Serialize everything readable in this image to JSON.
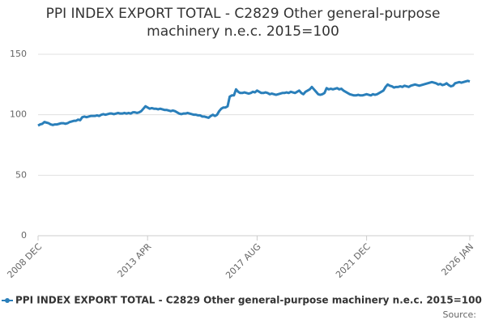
{
  "chart_data": {
    "type": "line",
    "title": "PPI INDEX EXPORT TOTAL - C2829 Other general-purpose machinery n.e.c. 2015=100",
    "source": "Source:",
    "categories": [
      "2008 DEC",
      null,
      null,
      null,
      null,
      null,
      null,
      null,
      null,
      null,
      null,
      null,
      null,
      null,
      null,
      null,
      null,
      null,
      null,
      null,
      null,
      null,
      null,
      null,
      null,
      null,
      null,
      null,
      null,
      null,
      null,
      null,
      null,
      null,
      null,
      null,
      null,
      null,
      null,
      null,
      null,
      null,
      null,
      null,
      null,
      null,
      null,
      null,
      null,
      null,
      null,
      null,
      "2013 APR",
      null,
      null,
      null,
      null,
      null,
      null,
      null,
      null,
      null,
      null,
      null,
      null,
      null,
      null,
      null,
      null,
      null,
      null,
      null,
      null,
      null,
      null,
      null,
      null,
      null,
      null,
      null,
      null,
      null,
      null,
      null,
      null,
      null,
      null,
      null,
      null,
      null,
      null,
      null,
      null,
      null,
      null,
      null,
      null,
      null,
      null,
      null,
      null,
      null,
      null,
      null,
      "2017 AUG",
      null,
      null,
      null,
      null,
      null,
      null,
      null,
      null,
      null,
      null,
      null,
      null,
      null,
      null,
      null,
      null,
      null,
      null,
      null,
      null,
      null,
      null,
      null,
      null,
      null,
      null,
      null,
      null,
      null,
      null,
      null,
      null,
      null,
      null,
      null,
      null,
      null,
      null,
      null,
      null,
      null,
      null,
      null,
      null,
      null,
      null,
      null,
      null,
      null,
      null,
      null,
      "2021 DEC",
      null,
      null,
      null,
      null,
      null,
      null,
      null,
      null,
      null,
      null,
      null,
      null,
      null,
      null,
      null,
      null,
      null,
      null,
      null,
      null,
      null,
      null,
      null,
      null,
      null,
      null,
      null,
      null,
      null,
      null,
      null,
      null,
      null,
      null,
      null,
      null,
      null,
      null,
      null,
      null,
      null,
      null,
      null,
      null,
      null,
      null,
      null,
      null,
      "2026 JAN"
    ],
    "series": [
      {
        "name": "PPI INDEX EXPORT TOTAL - C2829 Other general-purpose machinery n.e.c. 2015=100",
        "color": "#2a7fba",
        "values": [
          91,
          92,
          92.5,
          94,
          93.5,
          93,
          92,
          91.5,
          92,
          92,
          92.5,
          93,
          93,
          92.5,
          93,
          94,
          94.5,
          95,
          95,
          96,
          95.5,
          98,
          98.5,
          98,
          98.5,
          99,
          99,
          99,
          99.5,
          99,
          100,
          100.5,
          100,
          100.5,
          101,
          101,
          100.5,
          101,
          101.5,
          101,
          101,
          101.5,
          101,
          101.5,
          101,
          102,
          102,
          101.5,
          102,
          103,
          105,
          107,
          106,
          105,
          105.5,
          105,
          105,
          104.5,
          105,
          104.5,
          104,
          104,
          103.5,
          103,
          103.5,
          103,
          102,
          101,
          100.5,
          101,
          101,
          101.5,
          101,
          100.5,
          100,
          100,
          99.5,
          99.5,
          98.5,
          98.5,
          98,
          97.5,
          99,
          100,
          99,
          100,
          103,
          105,
          106,
          106,
          107,
          115,
          116,
          116,
          121,
          119,
          118,
          118,
          118.5,
          118,
          117.5,
          118,
          119,
          118.5,
          120,
          119,
          118,
          118,
          118.5,
          118,
          117,
          117.5,
          117,
          116.5,
          117,
          117.5,
          118,
          118,
          118.5,
          118,
          119,
          118.5,
          118,
          119,
          120,
          118,
          117,
          119,
          120,
          121,
          123,
          121,
          119,
          117,
          116.5,
          117,
          118,
          122,
          121,
          121.5,
          121,
          121.5,
          122,
          121,
          121.5,
          120,
          119,
          118,
          117,
          116.5,
          116,
          116,
          116.5,
          116,
          116,
          116.5,
          117,
          116.5,
          116,
          117,
          116.5,
          117,
          118,
          119,
          120,
          123,
          125,
          124,
          123.5,
          122.5,
          123,
          123,
          123.5,
          123,
          124,
          123.5,
          123,
          124,
          124.5,
          125,
          124.5,
          124,
          124.5,
          125,
          125.5,
          126,
          126.5,
          127,
          126.5,
          126,
          125,
          125.5,
          124.5,
          125,
          126,
          124.5,
          123.5,
          124,
          126,
          126.5,
          127,
          126.5,
          127,
          127.5,
          128,
          127.5
        ]
      }
    ],
    "ylim": [
      0,
      150
    ],
    "yticks": [
      0,
      50,
      100,
      150
    ],
    "grid": true
  }
}
